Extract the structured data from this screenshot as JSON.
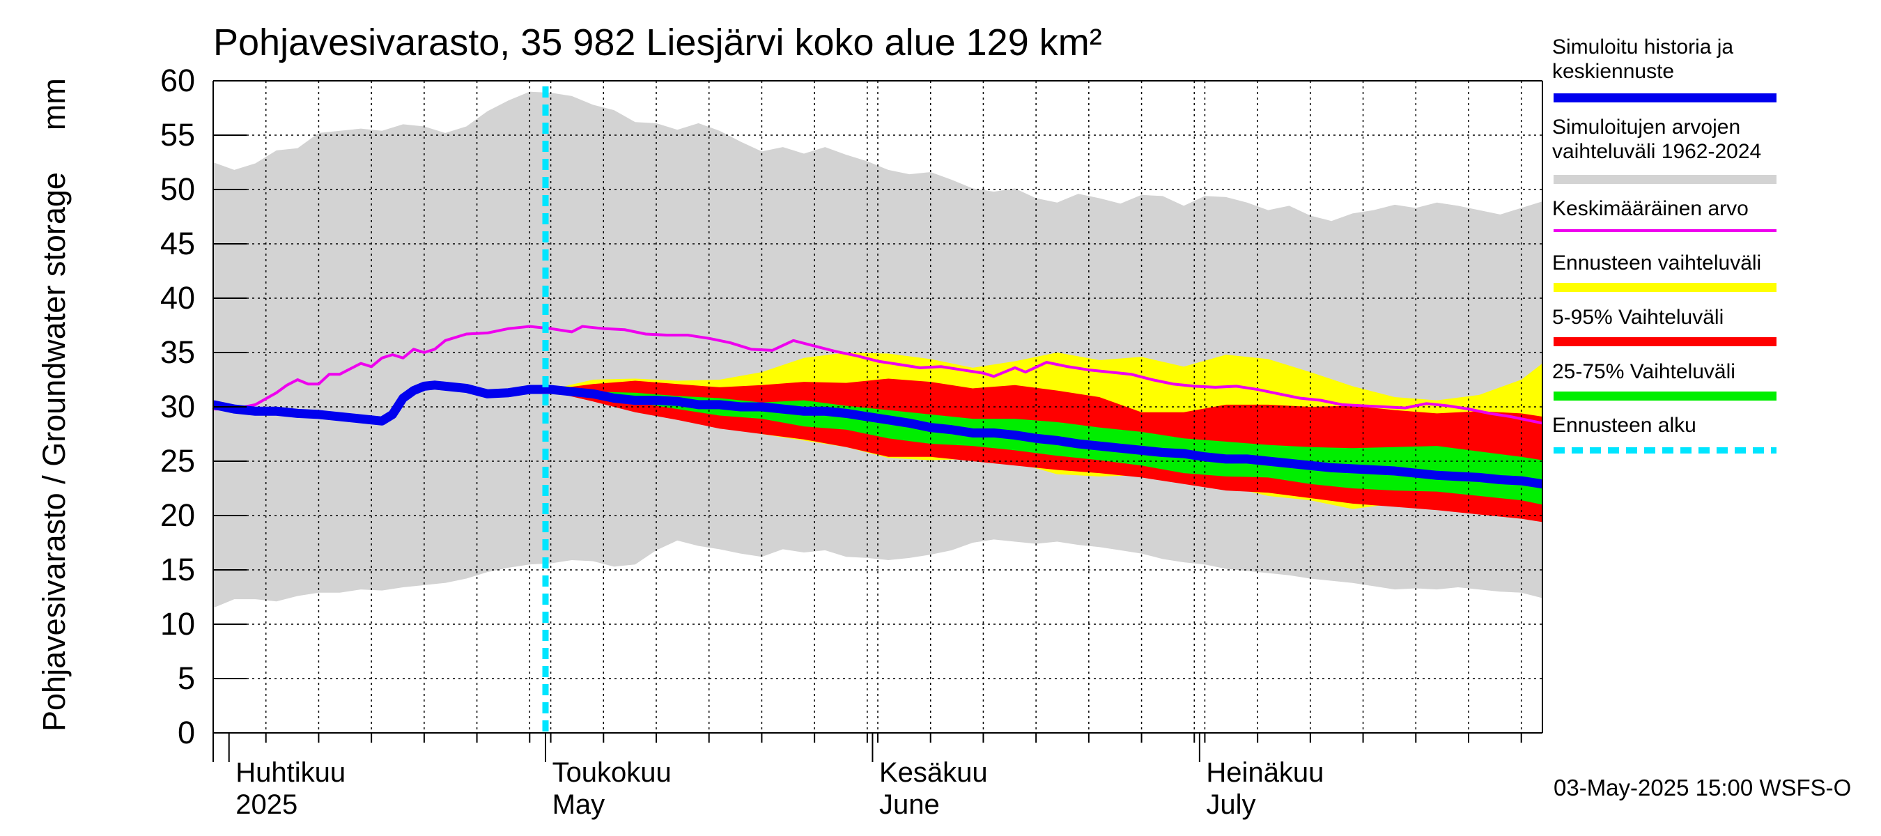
{
  "title": "Pohjavesivarasto, 35 982 Liesjärvi koko alue 129 km²",
  "y_axis_label": "Pohjavesivarasto / Groundwater storage",
  "y_axis_unit": "mm",
  "footer": "03-May-2025 15:00 WSFS-O",
  "colors": {
    "history": "#0000ee",
    "range": "#d3d3d3",
    "mean": "#ee00ee",
    "forecast_range": "#ffff00",
    "p5_95": "#ff0000",
    "p25_75": "#00ee00",
    "forecast_start": "#00e5ff",
    "grid": "#000000"
  },
  "legend": [
    {
      "label": "Simuloitu historia ja\nkeskiennuste",
      "color": "#0000ee",
      "style": "thick"
    },
    {
      "label": "Simuloitujen arvojen\nvaihteluväli 1962-2024",
      "color": "#d3d3d3",
      "style": "thick"
    },
    {
      "label": "Keskimääräinen arvo",
      "color": "#ee00ee",
      "style": "thin"
    },
    {
      "label": "Ennusteen vaihteluväli",
      "color": "#ffff00",
      "style": "thick"
    },
    {
      "label": "5-95% Vaihteluväli",
      "color": "#ff0000",
      "style": "thick"
    },
    {
      "label": "25-75% Vaihteluväli",
      "color": "#00ee00",
      "style": "thick"
    },
    {
      "label": "Ennusteen alku",
      "color": "#00e5ff",
      "style": "dashed"
    }
  ],
  "chart_data": {
    "type": "area",
    "title": "Pohjavesivarasto, 35 982 Liesjärvi koko alue 129 km²",
    "ylabel": "Pohjavesivarasto / Groundwater storage   mm",
    "ylim": [
      0,
      60
    ],
    "yticks": [
      0,
      5,
      10,
      15,
      20,
      25,
      30,
      35,
      40,
      45,
      50,
      55,
      60
    ],
    "x_unit": "day of year 2025",
    "xlim": [
      89,
      215
    ],
    "x_gridlines": [
      89,
      94,
      99,
      104,
      109,
      114,
      119,
      121,
      126,
      131,
      136,
      141,
      146,
      151,
      152,
      157,
      162,
      167,
      172,
      177,
      182,
      183,
      188,
      193,
      198,
      203,
      208,
      213
    ],
    "month_labels": [
      {
        "fi": "Huhtikuu",
        "en": "2025",
        "x": 91
      },
      {
        "fi": "Toukokuu",
        "en": "May",
        "x": 121
      },
      {
        "fi": "Kesäkuu",
        "en": "June",
        "x": 152
      },
      {
        "fi": "Heinäkuu",
        "en": "July",
        "x": 183
      }
    ],
    "month_boundaries": [
      91,
      121,
      152,
      183
    ],
    "forecast_start": 120.5,
    "range_upper": {
      "x": [
        89,
        91,
        93,
        95,
        97,
        99,
        101,
        103,
        105,
        107,
        109,
        111,
        113,
        115,
        117,
        119,
        121,
        123,
        125,
        127,
        129,
        131,
        133,
        135,
        137,
        139,
        141,
        143,
        145,
        147,
        149,
        151,
        153,
        155,
        157,
        159,
        161,
        163,
        165,
        167,
        169,
        171,
        173,
        175,
        177,
        179,
        181,
        183,
        185,
        187,
        189,
        191,
        193,
        195,
        197,
        199,
        201,
        203,
        205,
        207,
        209,
        211,
        213,
        215
      ],
      "y": [
        52.5,
        51.8,
        52.4,
        53.6,
        53.8,
        55.2,
        55.4,
        55.6,
        55.4,
        56,
        55.8,
        55.2,
        55.8,
        57.2,
        58.2,
        59,
        58.9,
        58.6,
        57.8,
        57.3,
        56.2,
        56.1,
        55.5,
        56.1,
        55.4,
        54.4,
        53.5,
        53.9,
        53.3,
        53.9,
        53.2,
        52.6,
        51.8,
        51.4,
        51.6,
        50.9,
        50.1,
        49.8,
        50.1,
        49.2,
        48.8,
        49.6,
        49.2,
        48.7,
        49.5,
        49.4,
        48.5,
        49.4,
        49.3,
        48.8,
        48.1,
        48.5,
        47.6,
        47.1,
        47.8,
        48.1,
        48.6,
        48.3,
        48.8,
        48.5,
        48.1,
        47.7,
        48.3,
        48.9
      ]
    },
    "range_lower": {
      "x": [
        89,
        91,
        93,
        95,
        97,
        99,
        101,
        103,
        105,
        107,
        109,
        111,
        113,
        115,
        117,
        119,
        121,
        123,
        125,
        127,
        129,
        131,
        133,
        135,
        137,
        139,
        141,
        143,
        145,
        147,
        149,
        151,
        153,
        155,
        157,
        159,
        161,
        163,
        165,
        167,
        169,
        171,
        173,
        175,
        177,
        179,
        181,
        183,
        185,
        187,
        189,
        191,
        193,
        195,
        197,
        199,
        201,
        203,
        205,
        207,
        209,
        211,
        213,
        215
      ],
      "y": [
        11.5,
        12.3,
        12.3,
        12.1,
        12.6,
        12.9,
        12.9,
        13.2,
        13.1,
        13.4,
        13.6,
        13.8,
        14.2,
        14.8,
        15.2,
        15.5,
        15.6,
        15.9,
        15.8,
        15.3,
        15.5,
        16.8,
        17.7,
        17.2,
        16.9,
        16.5,
        16.2,
        16.9,
        16.6,
        16.8,
        16.2,
        16.1,
        15.9,
        16.1,
        16.4,
        16.8,
        17.5,
        17.8,
        17.6,
        17.4,
        17.6,
        17.3,
        17.1,
        16.8,
        16.5,
        16,
        15.7,
        15.5,
        15.1,
        14.9,
        14.7,
        14.5,
        14.2,
        14,
        13.8,
        13.5,
        13.2,
        13.3,
        13.2,
        13.4,
        13.2,
        13,
        12.9,
        12.4
      ]
    },
    "mean": {
      "x": [
        89,
        91,
        93,
        95,
        96,
        97,
        98,
        99,
        100,
        101,
        102,
        103,
        104,
        105,
        106,
        107,
        108,
        109,
        110,
        111,
        113,
        115,
        117,
        119,
        121,
        123,
        124,
        126,
        128,
        130,
        132,
        134,
        136,
        138,
        140,
        142,
        144,
        146,
        148,
        150,
        152,
        154,
        156,
        158,
        160,
        162,
        163,
        164,
        165,
        166,
        168,
        170,
        172,
        174,
        176,
        178,
        180,
        182,
        184,
        186,
        188,
        190,
        192,
        194,
        196,
        198,
        200,
        202,
        204,
        206,
        208,
        210,
        212,
        215
      ],
      "y": [
        29.8,
        29.8,
        30.2,
        31.3,
        32,
        32.5,
        32.1,
        32.1,
        33,
        33,
        33.5,
        34,
        33.7,
        34.5,
        34.8,
        34.5,
        35.3,
        35,
        35.3,
        36.1,
        36.7,
        36.8,
        37.2,
        37.4,
        37.2,
        36.9,
        37.4,
        37.2,
        37.1,
        36.7,
        36.6,
        36.6,
        36.3,
        35.9,
        35.3,
        35.2,
        36.1,
        35.6,
        35.1,
        34.7,
        34.2,
        33.9,
        33.6,
        33.7,
        33.4,
        33.1,
        32.8,
        33.2,
        33.6,
        33.2,
        34.1,
        33.7,
        33.4,
        33.2,
        33,
        32.5,
        32.1,
        31.9,
        31.8,
        31.9,
        31.6,
        31.2,
        30.8,
        30.6,
        30.2,
        30.1,
        30,
        29.9,
        30.3,
        30.1,
        29.8,
        29.4,
        29.1,
        28.5
      ]
    },
    "history_median": {
      "x": [
        89,
        91,
        93,
        95,
        97,
        99,
        101,
        103,
        105,
        106,
        107,
        108,
        109,
        110,
        111,
        113,
        115,
        117,
        119,
        121,
        123,
        125,
        127,
        129,
        131,
        133,
        135,
        137,
        139,
        141,
        143,
        145,
        147,
        149,
        151,
        153,
        155,
        157,
        159,
        161,
        163,
        165,
        167,
        169,
        171,
        173,
        175,
        177,
        179,
        181,
        183,
        185,
        187,
        189,
        191,
        193,
        195,
        197,
        199,
        201,
        203,
        205,
        207,
        209,
        211,
        213,
        215
      ],
      "y": [
        30.2,
        29.8,
        29.6,
        29.6,
        29.4,
        29.3,
        29.1,
        28.9,
        28.7,
        29.3,
        30.8,
        31.5,
        31.9,
        32,
        31.9,
        31.7,
        31.2,
        31.3,
        31.6,
        31.6,
        31.4,
        31.2,
        30.8,
        30.6,
        30.6,
        30.5,
        30.2,
        30.2,
        30,
        30,
        29.8,
        29.6,
        29.6,
        29.4,
        29.1,
        28.8,
        28.5,
        28.1,
        27.9,
        27.6,
        27.6,
        27.4,
        27.1,
        26.9,
        26.6,
        26.4,
        26.2,
        26,
        25.8,
        25.7,
        25.4,
        25.2,
        25.2,
        25,
        24.8,
        24.6,
        24.4,
        24.3,
        24.2,
        24.1,
        23.9,
        23.7,
        23.6,
        23.5,
        23.3,
        23.2,
        22.9
      ]
    },
    "forecast_range": {
      "x": [
        121,
        125,
        129,
        133,
        137,
        141,
        145,
        149,
        153,
        157,
        161,
        165,
        169,
        173,
        177,
        181,
        185,
        189,
        193,
        197,
        201,
        205,
        209,
        213,
        215
      ],
      "upper": [
        31.6,
        32.5,
        32.6,
        32.4,
        32.5,
        33.2,
        34.5,
        35,
        34.9,
        34.4,
        33.6,
        34.2,
        35,
        34.3,
        34.6,
        33.7,
        34.8,
        34.4,
        33.2,
        31.9,
        30.9,
        30.6,
        31.1,
        32.5,
        34
      ],
      "lower": [
        31.4,
        30.6,
        29.7,
        28.9,
        28.1,
        27.5,
        26.9,
        26.3,
        25.3,
        25.1,
        25.2,
        24.9,
        23.8,
        23.6,
        23.7,
        23.1,
        22.7,
        21.8,
        21.4,
        20.6,
        21.1,
        20.7,
        20.4,
        20.1,
        19.5
      ]
    },
    "p5_95": {
      "x": [
        121,
        125,
        129,
        133,
        137,
        141,
        145,
        149,
        153,
        157,
        161,
        165,
        169,
        173,
        177,
        181,
        185,
        189,
        193,
        197,
        201,
        205,
        209,
        213,
        215
      ],
      "upper": [
        31.6,
        32.1,
        32.4,
        32.1,
        31.8,
        32,
        32.3,
        32.2,
        32.6,
        32.3,
        31.7,
        32,
        31.5,
        30.9,
        29.5,
        29.5,
        30.2,
        30.2,
        30,
        30.1,
        29.7,
        29.4,
        29.6,
        29.4,
        29.1
      ],
      "lower": [
        31.4,
        30.5,
        29.5,
        28.8,
        28,
        27.5,
        27,
        26.3,
        25.4,
        25.4,
        25,
        24.6,
        24.2,
        23.9,
        23.5,
        22.9,
        22.3,
        22.1,
        21.6,
        21.1,
        20.8,
        20.5,
        20.1,
        19.7,
        19.4
      ]
    },
    "p25_75": {
      "x": [
        121,
        125,
        129,
        133,
        137,
        141,
        145,
        149,
        153,
        157,
        161,
        165,
        169,
        173,
        177,
        181,
        185,
        189,
        193,
        197,
        201,
        205,
        209,
        213,
        215
      ],
      "upper": [
        31.6,
        31.4,
        31.3,
        31,
        30.8,
        30.4,
        30.6,
        30.1,
        29.7,
        29.3,
        28.9,
        28.9,
        28.6,
        28.1,
        27.7,
        27.1,
        26.8,
        26.5,
        26.3,
        26.2,
        26.3,
        26.4,
        25.9,
        25.4,
        25.1
      ],
      "lower": [
        31.5,
        31.1,
        30.4,
        29.8,
        29.2,
        28.9,
        28.2,
        27.9,
        27.1,
        26.6,
        26.4,
        26,
        25.5,
        25.1,
        24.6,
        23.9,
        23.6,
        23.5,
        22.9,
        22.5,
        22.3,
        22.2,
        21.8,
        21.4,
        21
      ]
    }
  }
}
